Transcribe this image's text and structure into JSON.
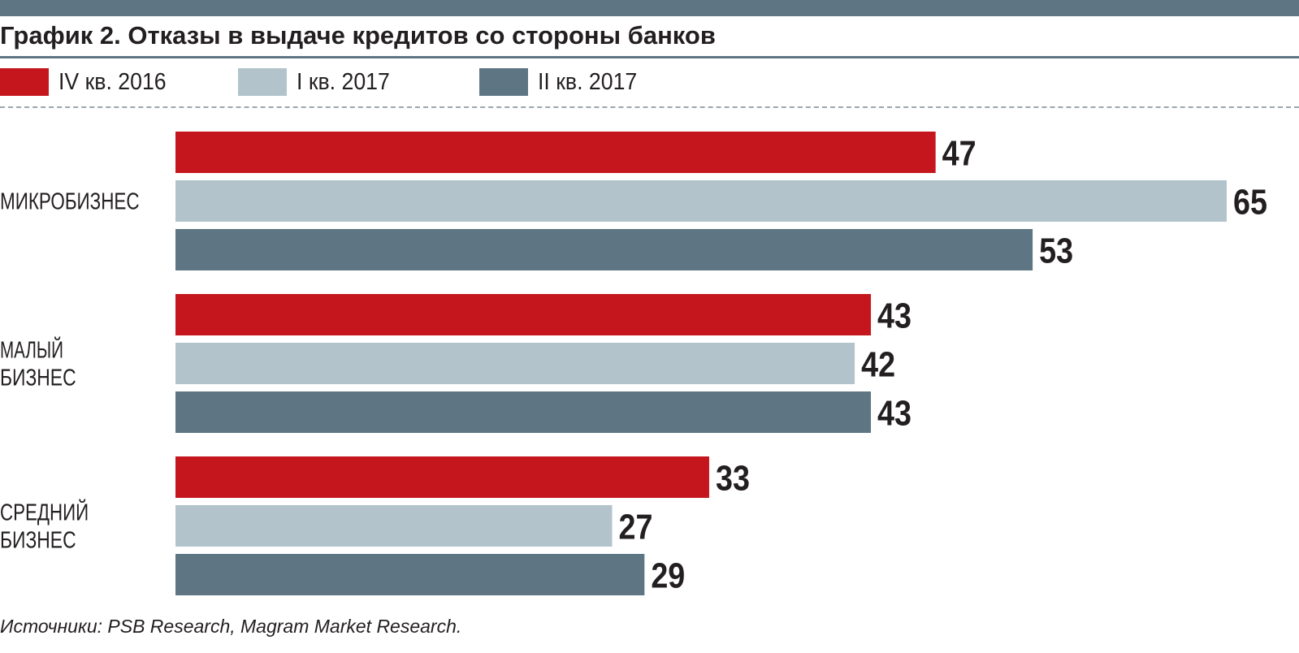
{
  "title": "График 2. Отказы в выдаче кредитов со стороны банков",
  "colors": {
    "header_bar": "#5e7584",
    "series": [
      "#c4161c",
      "#b2c3cb",
      "#5e7584"
    ]
  },
  "chart_data": {
    "type": "bar",
    "orientation": "horizontal",
    "title": "График 2. Отказы в выдаче кредитов со стороны банков",
    "categories": [
      [
        "МИКРОБИЗНЕС"
      ],
      [
        "МАЛЫЙ",
        "БИЗНЕС"
      ],
      [
        "СРЕДНИЙ",
        "БИЗНЕС"
      ]
    ],
    "series": [
      {
        "name": "IV кв. 2016",
        "color": "#c4161c",
        "values": [
          47,
          43,
          33
        ]
      },
      {
        "name": "I кв. 2017",
        "color": "#b2c3cb",
        "values": [
          65,
          42,
          27
        ]
      },
      {
        "name": "II кв. 2017",
        "color": "#5e7584",
        "values": [
          53,
          43,
          29
        ]
      }
    ],
    "xlim": [
      0,
      65
    ],
    "grid": false,
    "legend": "top-left",
    "data_labels": true
  },
  "source": "Источники: PSB Research, Magram Market Research."
}
